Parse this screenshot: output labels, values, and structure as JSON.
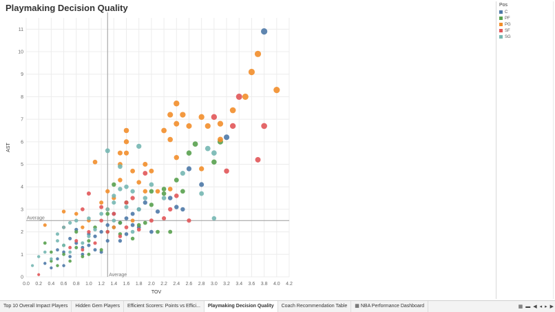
{
  "page": {
    "title": "Playmaking Decision Quality"
  },
  "legend": {
    "title": "Pos",
    "items": [
      {
        "label": "C",
        "color": "#4e79a7"
      },
      {
        "label": "PF",
        "color": "#59a14f"
      },
      {
        "label": "PG",
        "color": "#f28e2b"
      },
      {
        "label": "SF",
        "color": "#e15759"
      },
      {
        "label": "SG",
        "color": "#76b7b2"
      }
    ]
  },
  "tabs": [
    {
      "label": "Top 10 Overall Impact Players",
      "active": false
    },
    {
      "label": "Hidden Gem Players",
      "active": false
    },
    {
      "label": "Efficient Scorers: Points vs Effici...",
      "active": false
    },
    {
      "label": "Playmaking Decision Quality",
      "active": true
    },
    {
      "label": "Coach Recommendation Table",
      "active": false
    },
    {
      "label": "NBA Performance Dashboard",
      "active": false,
      "icon": "dashboard-icon"
    }
  ],
  "nav_icons": [
    "grid-view-icon",
    "filmstrip-icon",
    "first-page-icon",
    "previous-page-icon",
    "next-page-icon",
    "last-page-icon"
  ],
  "chart_data": {
    "type": "scatter",
    "title": "Playmaking Decision Quality",
    "xlabel": "TOV",
    "ylabel": "AST",
    "xlim": [
      0,
      4.2
    ],
    "ylim": [
      0,
      11.5
    ],
    "x_ticks": [
      0.0,
      0.2,
      0.4,
      0.6,
      0.8,
      1.0,
      1.2,
      1.4,
      1.6,
      1.8,
      2.0,
      2.2,
      2.4,
      2.6,
      2.8,
      3.0,
      3.2,
      3.4,
      3.6,
      3.8,
      4.0,
      4.2
    ],
    "y_ticks": [
      0,
      1,
      2,
      3,
      4,
      5,
      6,
      7,
      8,
      9,
      10,
      11
    ],
    "grid": true,
    "legend_position": "top-right",
    "reference_lines": [
      {
        "axis": "x",
        "value": 1.3,
        "label": "Average"
      },
      {
        "axis": "y",
        "value": 2.5,
        "label": "Average"
      }
    ],
    "series": [
      {
        "name": "C",
        "color": "#4e79a7",
        "points": [
          [
            3.8,
            10.9
          ],
          [
            3.2,
            6.2
          ],
          [
            2.6,
            4.8
          ],
          [
            2.8,
            4.1
          ],
          [
            2.4,
            3.1
          ],
          [
            2.5,
            3.0
          ],
          [
            1.8,
            3.0
          ],
          [
            1.7,
            2.8
          ],
          [
            1.5,
            2.4
          ],
          [
            1.3,
            2.3
          ],
          [
            1.8,
            2.2
          ],
          [
            1.2,
            2.0
          ],
          [
            1.0,
            1.9
          ],
          [
            0.8,
            1.5
          ],
          [
            0.6,
            1.1
          ],
          [
            0.5,
            0.8
          ],
          [
            0.3,
            0.6
          ],
          [
            0.7,
            1.7
          ],
          [
            0.9,
            1.3
          ],
          [
            1.1,
            1.8
          ],
          [
            1.4,
            2.2
          ],
          [
            1.6,
            1.9
          ],
          [
            2.0,
            2.0
          ],
          [
            1.9,
            3.3
          ],
          [
            2.3,
            3.5
          ],
          [
            1.5,
            1.6
          ],
          [
            1.2,
            1.1
          ],
          [
            0.9,
            1.0
          ],
          [
            0.6,
            0.5
          ],
          [
            0.4,
            0.4
          ],
          [
            1.3,
            1.6
          ],
          [
            1.0,
            1.4
          ],
          [
            0.8,
            2.1
          ],
          [
            1.1,
            1.2
          ],
          [
            1.7,
            2.3
          ],
          [
            0.7,
            0.9
          ],
          [
            0.5,
            1.2
          ],
          [
            1.4,
            2.8
          ],
          [
            2.1,
            2.9
          ],
          [
            1.6,
            2.6
          ]
        ]
      },
      {
        "name": "PF",
        "color": "#59a14f",
        "points": [
          [
            2.7,
            5.9
          ],
          [
            2.6,
            5.5
          ],
          [
            3.0,
            5.1
          ],
          [
            2.5,
            3.8
          ],
          [
            2.2,
            3.9
          ],
          [
            2.0,
            3.2
          ],
          [
            1.8,
            2.3
          ],
          [
            1.5,
            2.4
          ],
          [
            1.3,
            2.0
          ],
          [
            1.0,
            1.6
          ],
          [
            0.8,
            1.3
          ],
          [
            0.6,
            1.0
          ],
          [
            0.4,
            0.7
          ],
          [
            0.3,
            1.5
          ],
          [
            1.4,
            4.1
          ],
          [
            1.6,
            3.3
          ],
          [
            2.3,
            2.0
          ],
          [
            2.1,
            2.0
          ],
          [
            1.7,
            1.7
          ],
          [
            1.2,
            1.2
          ],
          [
            0.9,
            0.9
          ],
          [
            0.7,
            0.7
          ],
          [
            0.5,
            0.5
          ],
          [
            1.1,
            2.2
          ],
          [
            1.3,
            2.8
          ],
          [
            1.9,
            2.4
          ],
          [
            2.4,
            4.3
          ],
          [
            2.0,
            3.8
          ],
          [
            1.5,
            1.9
          ],
          [
            0.8,
            2.0
          ],
          [
            0.6,
            1.4
          ],
          [
            1.0,
            1.0
          ],
          [
            2.2,
            3.7
          ],
          [
            0.4,
            1.1
          ],
          [
            3.1,
            6.0
          ]
        ]
      },
      {
        "name": "PG",
        "color": "#f28e2b",
        "points": [
          [
            3.7,
            9.9
          ],
          [
            3.6,
            9.1
          ],
          [
            4.0,
            8.3
          ],
          [
            3.5,
            8.0
          ],
          [
            3.3,
            7.4
          ],
          [
            3.1,
            6.8
          ],
          [
            2.9,
            6.7
          ],
          [
            2.6,
            6.7
          ],
          [
            2.4,
            6.8
          ],
          [
            2.4,
            7.7
          ],
          [
            2.3,
            7.2
          ],
          [
            2.3,
            6.1
          ],
          [
            2.8,
            7.1
          ],
          [
            2.2,
            6.5
          ],
          [
            2.5,
            7.2
          ],
          [
            1.6,
            6.5
          ],
          [
            1.6,
            6.0
          ],
          [
            1.6,
            5.5
          ],
          [
            1.5,
            5.5
          ],
          [
            1.5,
            5.0
          ],
          [
            1.7,
            4.7
          ],
          [
            1.9,
            5.0
          ],
          [
            2.0,
            4.7
          ],
          [
            2.4,
            5.3
          ],
          [
            2.8,
            4.8
          ],
          [
            3.1,
            6.1
          ],
          [
            1.1,
            5.1
          ],
          [
            1.5,
            4.3
          ],
          [
            1.4,
            3.5
          ],
          [
            1.8,
            4.2
          ],
          [
            2.1,
            3.8
          ],
          [
            1.3,
            3.8
          ],
          [
            1.2,
            3.3
          ],
          [
            1.0,
            2.5
          ],
          [
            0.9,
            2.2
          ],
          [
            0.6,
            2.9
          ],
          [
            0.3,
            2.3
          ],
          [
            1.7,
            2.5
          ],
          [
            1.3,
            3.0
          ],
          [
            2.3,
            3.9
          ],
          [
            1.9,
            3.8
          ],
          [
            0.8,
            2.8
          ],
          [
            1.4,
            2.2
          ]
        ]
      },
      {
        "name": "SF",
        "color": "#e15759",
        "points": [
          [
            3.8,
            6.7
          ],
          [
            3.7,
            5.2
          ],
          [
            3.4,
            8.0
          ],
          [
            3.0,
            7.1
          ],
          [
            3.3,
            6.7
          ],
          [
            3.2,
            4.7
          ],
          [
            2.4,
            3.6
          ],
          [
            2.3,
            3.0
          ],
          [
            2.2,
            2.6
          ],
          [
            2.0,
            2.5
          ],
          [
            1.8,
            2.1
          ],
          [
            1.6,
            3.3
          ],
          [
            1.4,
            2.8
          ],
          [
            1.2,
            2.5
          ],
          [
            1.0,
            2.0
          ],
          [
            0.8,
            1.6
          ],
          [
            0.6,
            2.2
          ],
          [
            0.9,
            3.0
          ],
          [
            1.0,
            3.7
          ],
          [
            1.9,
            4.6
          ],
          [
            1.7,
            3.5
          ],
          [
            1.3,
            2.0
          ],
          [
            1.1,
            1.5
          ],
          [
            0.9,
            1.2
          ],
          [
            0.7,
            1.3
          ],
          [
            1.5,
            1.8
          ],
          [
            2.6,
            2.5
          ],
          [
            0.2,
            0.1
          ],
          [
            1.6,
            2.2
          ],
          [
            1.2,
            3.1
          ]
        ]
      },
      {
        "name": "SG",
        "color": "#76b7b2",
        "points": [
          [
            1.3,
            5.6
          ],
          [
            1.8,
            5.8
          ],
          [
            2.9,
            5.7
          ],
          [
            3.0,
            5.5
          ],
          [
            2.5,
            4.6
          ],
          [
            2.0,
            4.1
          ],
          [
            1.7,
            3.8
          ],
          [
            1.5,
            3.9
          ],
          [
            1.6,
            4.0
          ],
          [
            2.8,
            3.7
          ],
          [
            3.0,
            2.6
          ],
          [
            1.4,
            3.6
          ],
          [
            1.4,
            3.3
          ],
          [
            1.3,
            3.0
          ],
          [
            1.2,
            2.8
          ],
          [
            1.0,
            2.6
          ],
          [
            0.8,
            2.5
          ],
          [
            0.6,
            2.2
          ],
          [
            0.5,
            1.9
          ],
          [
            0.5,
            1.6
          ],
          [
            0.3,
            1.1
          ],
          [
            0.2,
            0.9
          ],
          [
            0.1,
            0.5
          ],
          [
            0.4,
            0.8
          ],
          [
            0.6,
            1.4
          ],
          [
            0.7,
            1.1
          ],
          [
            0.9,
            1.5
          ],
          [
            1.1,
            2.1
          ],
          [
            1.4,
            2.5
          ],
          [
            1.6,
            3.1
          ],
          [
            1.8,
            3.0
          ],
          [
            2.2,
            3.5
          ],
          [
            1.7,
            2.0
          ],
          [
            1.9,
            3.5
          ],
          [
            1.5,
            4.9
          ],
          [
            0.7,
            2.4
          ],
          [
            1.0,
            1.8
          ]
        ]
      }
    ]
  }
}
